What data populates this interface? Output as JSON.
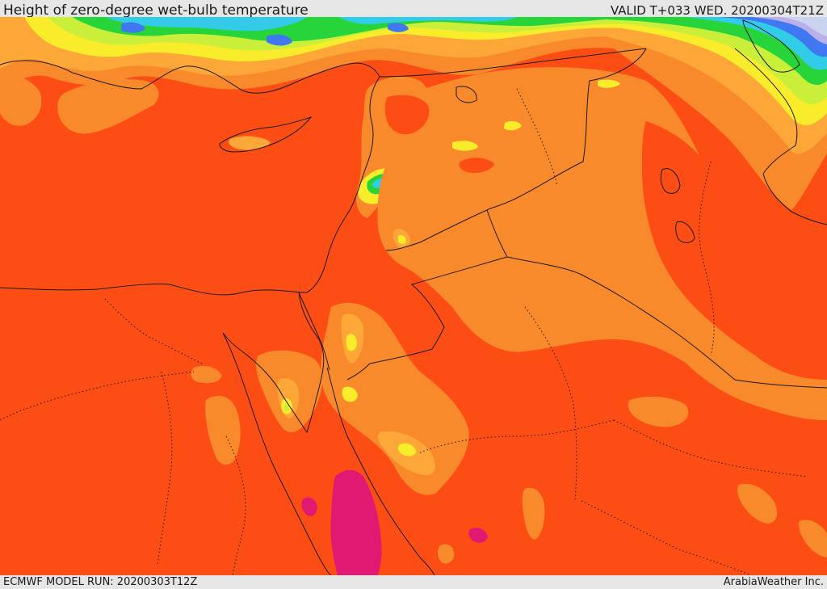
{
  "header": {
    "title": "Height of zero-degree wet-bulb temperature",
    "valid": "VALID T+033 WED. 20200304T21Z"
  },
  "footer": {
    "model_run": "ECMWF MODEL RUN: 20200303T12Z",
    "credit": "ArabiaWeather Inc."
  },
  "colors": {
    "red_orange": "#fb4d14",
    "orange": "#f98a2b",
    "light_orange": "#fca737",
    "yellow": "#f9ec2a",
    "light_green": "#c9ef3a",
    "green": "#27d43a",
    "cyan": "#33cce8",
    "blue": "#3f78f0",
    "lavender": "#b9b0ea",
    "pale_blue": "#cad4f1",
    "magenta": "#e01a73",
    "border": "#1a1a1a"
  }
}
